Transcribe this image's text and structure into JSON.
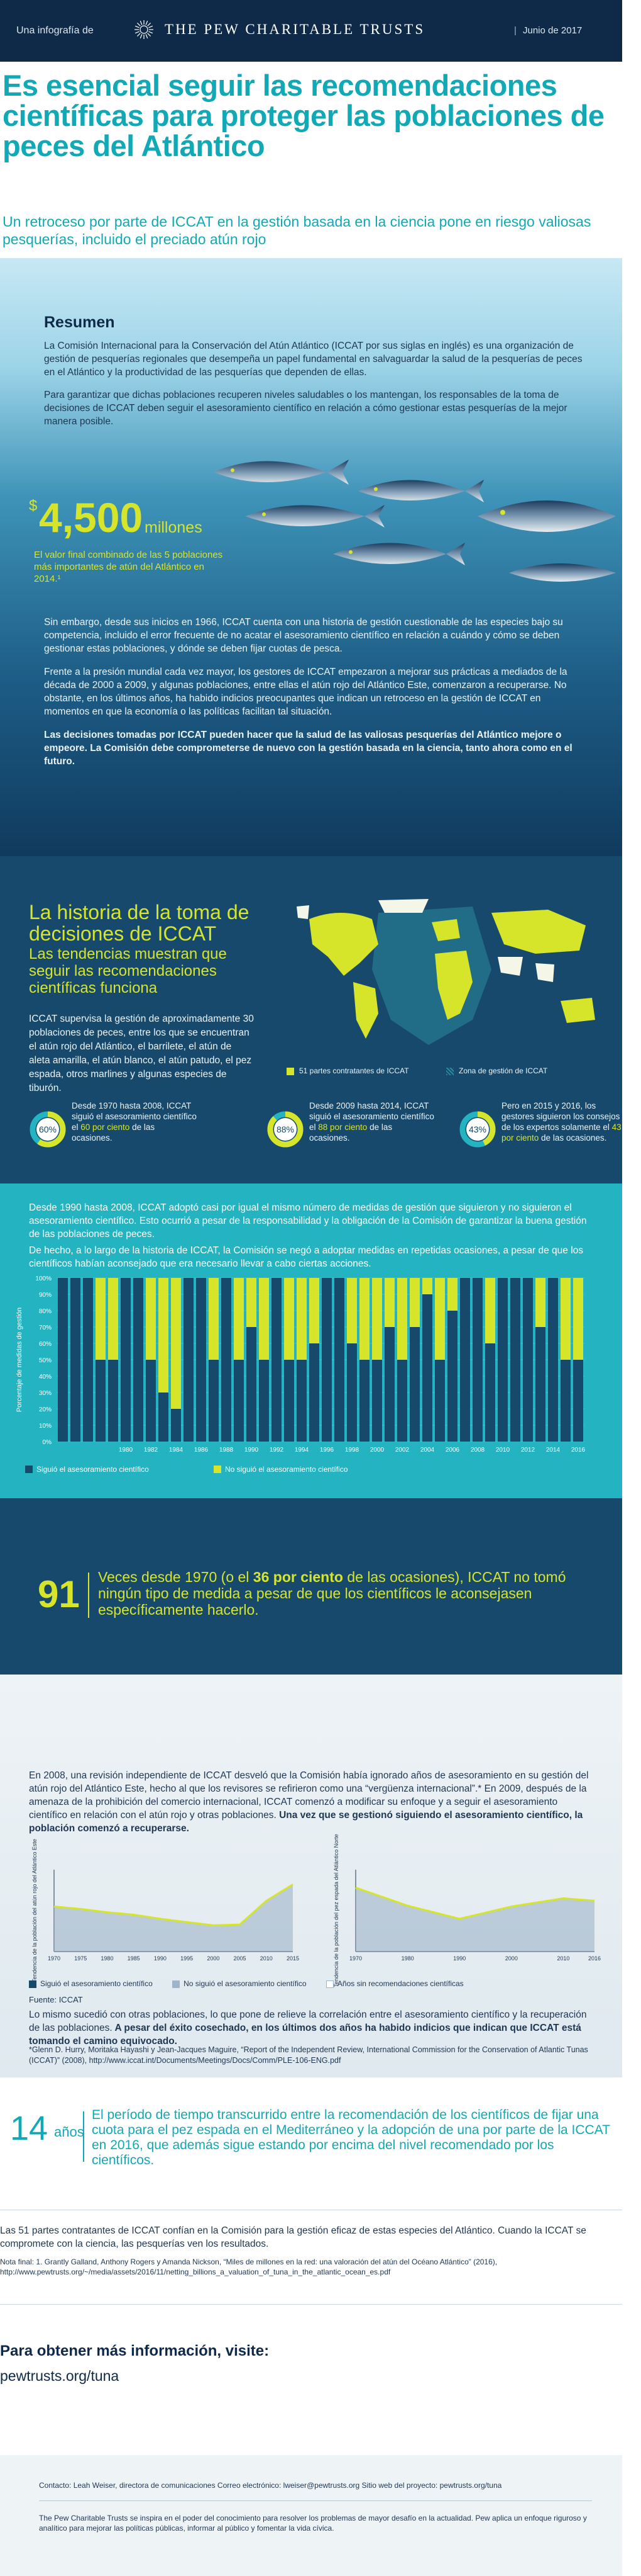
{
  "header": {
    "intro": "Una infografía de",
    "org": "THE PEW CHARITABLE TRUSTS",
    "date": "Junio de 2017"
  },
  "title": "Es esencial seguir las recomendaciones científicas para proteger las poblaciones de peces del Atlántico",
  "subtitle": "Un retroceso por parte de ICCAT en la gestión basada en la ciencia pone en riesgo valiosas pesquerías, incluido el preciado atún rojo",
  "resumen": {
    "heading": "Resumen",
    "p1": "La Comisión Internacional para la Conservación del Atún Atlántico (ICCAT por sus siglas en inglés) es una organización de gestión de pesquerías regionales que desempeña un papel fundamental en salvaguardar la salud de la pesquerías de peces en el Atlántico y la productividad de las pesquerías que dependen de ellas.",
    "p2": "Para garantizar que dichas poblaciones recuperen niveles saludables o los mantengan, los responsables de la toma de decisiones de ICCAT deben seguir el asesoramiento científico en relación a cómo gestionar estas pesquerías de la mejor manera posible."
  },
  "big_value": {
    "currency": "$",
    "number": "4,500",
    "unit": "millones",
    "text": "El valor final combinado de las 5 poblaciones más importantes de atún del Atlántico en 2014.¹"
  },
  "history_text": {
    "p1": "Sin embargo, desde sus inicios en 1966, ICCAT cuenta con una historia de gestión cuestionable de las especies bajo su competencia, incluido el error frecuente de no acatar el asesoramiento científico en relación a cuándo y cómo se deben gestionar estas poblaciones, y dónde se deben fijar cuotas de pesca.",
    "p2": "Frente a la presión mundial cada vez mayor, los gestores de ICCAT empezaron a mejorar sus prácticas a mediados de la década de 2000 a 2009, y algunas poblaciones, entre ellas el atún rojo del Atlántico Este, comenzaron a recuperarse. No obstante, en los últimos años, ha habido indicios preocupantes que indican un retroceso en la gestión de ICCAT en momentos en que la economía o las políticas facilitan tal situación.",
    "p3": "Las decisiones tomadas por ICCAT pueden hacer que la salud de las valiosas pesquerías del Atlántico mejore o empeore. La Comisión debe comprometerse de nuevo con la gestión basada en la ciencia, tanto ahora como en el futuro."
  },
  "decisions": {
    "heading": "La historia de la toma de decisiones de ICCAT",
    "subheading": "Las tendencias muestran que seguir las recomendaciones científicas funciona",
    "text": "ICCAT supervisa la gestión de aproximadamente 30 poblaciones de peces, entre los que se encuentran el atún rojo del Atlántico, el barrilete, el atún de aleta amarilla, el atún blanco, el atún patudo, el pez espada, otros marlines y algunas especies de tiburón.",
    "legend_parties": "51 partes contratantes de ICCAT",
    "legend_zone": "Zona de gestión de ICCAT"
  },
  "stats": [
    {
      "pct": "60",
      "pre": "Desde 1970 hasta 2008, ICCAT siguió el asesoramiento científico el ",
      "hl": "60 por ciento",
      "post": " de las ocasiones.",
      "fraction": 0.6
    },
    {
      "pct": "88",
      "pre": "Desde 2009 hasta 2014, ICCAT siguió el asesoramiento científico el ",
      "hl": "88 por ciento",
      "post": " de las ocasiones.",
      "fraction": 0.88
    },
    {
      "pct": "43",
      "pre": "Pero en 2015 y 2016, los gestores siguieron los consejos de los expertos solamente el ",
      "hl": "43 por ciento",
      "post": " de las ocasiones.",
      "fraction": 0.43
    }
  ],
  "teal": {
    "p1": "Desde 1990 hasta 2008, ICCAT adoptó casi por igual el mismo número de medidas de gestión que siguieron y no siguieron el asesoramiento científico. Esto ocurrió a pesar de la responsabilidad y la obligación de la Comisión de garantizar la buena gestión de las poblaciones de peces.",
    "p2": "De hecho, a lo largo de la historia de ICCAT, la Comisión se negó a adoptar medidas en repetidas ocasiones, a pesar de que los científicos habían aconsejado que era necesario llevar a cabo ciertas acciones."
  },
  "chart_data": [
    {
      "type": "bar",
      "ylabel": "Porcentaje de medidas de gestión",
      "y_ticks": [
        "0%",
        "10%",
        "20%",
        "30%",
        "40%",
        "50%",
        "60%",
        "70%",
        "80%",
        "90%",
        "100%"
      ],
      "ylim": [
        0,
        100
      ],
      "x_ticks": [
        "1980",
        "1982",
        "1984",
        "1986",
        "1988",
        "1990",
        "1992",
        "1994",
        "1996",
        "1998",
        "2000",
        "2002",
        "2004",
        "2006",
        "2008",
        "2010",
        "2012",
        "2014",
        "2016"
      ],
      "categories": [
        "1975",
        "1976",
        "1977",
        "1978",
        "1979",
        "1980",
        "1981",
        "1982",
        "1983",
        "1984",
        "1985",
        "1986",
        "1987",
        "1988",
        "1989",
        "1990",
        "1991",
        "1992",
        "1993",
        "1994",
        "1995",
        "1996",
        "1997",
        "1998",
        "1999",
        "2000",
        "2001",
        "2002",
        "2003",
        "2004",
        "2005",
        "2006",
        "2007",
        "2008",
        "2009",
        "2010",
        "2011",
        "2012",
        "2013",
        "2014",
        "2015",
        "2016"
      ],
      "series": [
        {
          "name": "Siguió el asesoramiento científico",
          "color": "#16496c",
          "values": [
            100,
            100,
            100,
            50,
            50,
            100,
            100,
            50,
            30,
            20,
            100,
            100,
            50,
            100,
            50,
            70,
            50,
            100,
            50,
            50,
            60,
            100,
            100,
            60,
            50,
            50,
            70,
            50,
            70,
            90,
            50,
            80,
            100,
            100,
            60,
            100,
            100,
            100,
            70,
            100,
            50,
            50
          ]
        },
        {
          "name": "No siguió el asesoramiento científico",
          "color": "#d6e52a",
          "values": [
            0,
            0,
            0,
            50,
            50,
            0,
            0,
            50,
            70,
            80,
            0,
            0,
            50,
            0,
            50,
            30,
            50,
            0,
            50,
            50,
            40,
            0,
            0,
            40,
            50,
            50,
            30,
            50,
            30,
            10,
            50,
            20,
            0,
            0,
            40,
            0,
            0,
            0,
            30,
            0,
            50,
            50
          ]
        }
      ]
    },
    {
      "type": "area",
      "title": "",
      "ylabel": "Tendencia de la población del atún rojo del Atlántico Este",
      "x": [
        1970,
        1975,
        1980,
        1985,
        1990,
        1995,
        2000,
        2005,
        2010,
        2015
      ],
      "x_ticks": [
        "1970",
        "1975",
        "1980",
        "1985",
        "1990",
        "1995",
        "2000",
        "2005",
        "2010",
        "2015"
      ],
      "values": [
        0.55,
        0.52,
        0.48,
        0.45,
        0.4,
        0.36,
        0.32,
        0.33,
        0.62,
        0.82
      ]
    },
    {
      "type": "area",
      "title": "",
      "ylabel": "Tendencia de la población del pez espada del Atlántico Norte",
      "x": [
        1970,
        1980,
        1990,
        2000,
        2010,
        2016
      ],
      "x_ticks": [
        "1970",
        "1980",
        "1990",
        "2000",
        "2010",
        "2016"
      ],
      "values": [
        0.78,
        0.56,
        0.4,
        0.55,
        0.65,
        0.62
      ]
    }
  ],
  "callout91": {
    "number": "91",
    "pre": "Veces desde 1970 (o el ",
    "hl": "36 por ciento",
    "post": " de las ocasiones), ICCAT no tomó ningún tipo de medida a pesar de que los científicos le aconsejasen específicamente hacerlo."
  },
  "review": {
    "p1": "En 2008, una revisión independiente de ICCAT desveló que la Comisión había ignorado años de asesoramiento en su gestión del atún rojo del Atlántico Este, hecho al que los revisores se refirieron como una “vergüenza internacional”.* En 2009, después de la amenaza de la prohibición del comercio internacional, ICCAT comenzó a modificar su enfoque y a seguir el asesoramiento científico en relación con el atún rojo y otras poblaciones.",
    "p1b": "Una vez que se gestionó siguiendo el asesoramiento científico, la población comenzó a recuperarse.",
    "legend_a": "Siguió el asesoramiento científico",
    "legend_b": "No siguió el asesoramiento científico",
    "legend_c": "Años sin recomendaciones científicas",
    "source": "Fuente: ICCAT",
    "p2": "Lo mismo sucedió con otras poblaciones, lo que pone de relieve la correlación entre el asesoramiento científico y la recuperación de las poblaciones.",
    "p2b": " A pesar del éxito cosechado, en los últimos dos años ha habido indicios que indican que ICCAT está tomando el camino equivocado.",
    "cite": "*Glenn D. Hurry, Moritaka Hayashi y Jean-Jacques Maguire, “Report of the Independent Review, International Commission for the Conservation of Atlantic Tunas (ICCAT)” (2008), http://www.iccat.int/Documents/Meetings/Docs/Comm/PLE-106-ENG.pdf"
  },
  "callout14": {
    "number": "14",
    "unit": "años",
    "text": "El período de tiempo transcurrido entre la recomendación de los científicos de fijar una cuota para el pez espada en el Mediterráneo y la adopción de una por parte de la ICCAT en 2016, que además sigue estando por encima del nivel recomendado por los científicos."
  },
  "closing": {
    "p": "Las 51 partes contratantes de ICCAT confían en la Comisión para la gestión eficaz de estas especies del Atlántico. Cuando la ICCAT se compromete con la ciencia, las pesquerías ven los resultados.",
    "note": "Nota final: 1. Grantly Galland, Anthony Rogers y Amanda Nickson, “Miles de millones en la red: una valoración del atún del Océano Atlántico” (2016), http://www.pewtrusts.org/~/media/assets/2016/11/netting_billions_a_valuation_of_tuna_in_the_atlantic_ocean_es.pdf"
  },
  "more": {
    "heading": "Para obtener más información, visite:",
    "url": "pewtrusts.org/tuna"
  },
  "footer": {
    "contact": "Contacto: Leah Weiser, directora de comunicaciones   Correo electrónico: lweiser@pewtrusts.org   Sitio web del proyecto: pewtrusts.org/tuna",
    "about": "The Pew Charitable Trusts se inspira en el poder del conocimiento para resolver los problemas de mayor desafío en la actualidad. Pew aplica un enfoque riguroso y analítico para mejorar las políticas públicas, informar al público y fomentar la vida cívica."
  },
  "colors": {
    "navy": "#0f2a48",
    "teal": "#11a9b5",
    "lime": "#d6e52a",
    "dark": "#16496c",
    "chart_bg": "#24b3c1"
  }
}
